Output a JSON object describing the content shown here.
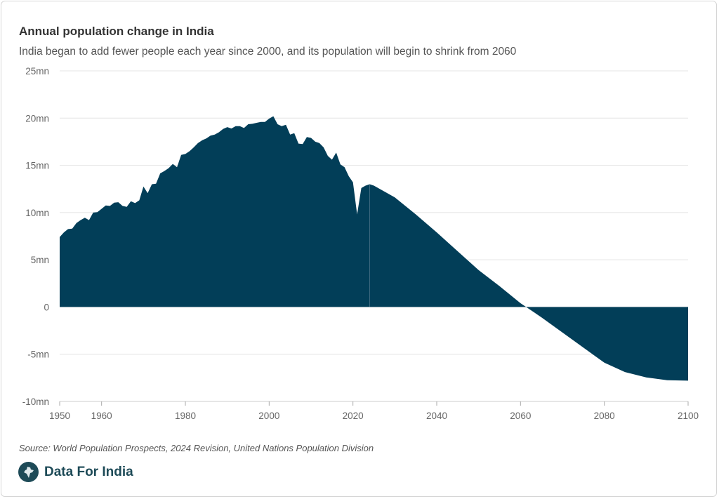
{
  "chart_data": {
    "type": "area",
    "title": "Annual population change in India",
    "subtitle": "India began to add fewer people each year since 2000, and its population will begin to shrink from 2060",
    "xlabel": "",
    "ylabel": "",
    "xlim": [
      1950,
      2100
    ],
    "ylim": [
      -10,
      25
    ],
    "x_ticks": [
      "1950",
      "1960",
      "1980",
      "2000",
      "2020",
      "2040",
      "2060",
      "2080",
      "2100"
    ],
    "y_ticks": [
      "25mn",
      "20mn",
      "15mn",
      "10mn",
      "5mn",
      "0",
      "-5mn",
      "-10mn"
    ],
    "y_tick_values": [
      25,
      20,
      15,
      10,
      5,
      0,
      -5,
      -10
    ],
    "x_tick_values": [
      1950,
      1960,
      1980,
      2000,
      2020,
      2040,
      2060,
      2080,
      2100
    ],
    "grid": true,
    "unit": "million people",
    "color": "#023e58",
    "series": [
      {
        "x": [
          1950,
          1951,
          1952,
          1953,
          1954,
          1955,
          1956,
          1957,
          1958,
          1959,
          1960,
          1961,
          1962,
          1963,
          1964,
          1965,
          1966,
          1967,
          1968,
          1969,
          1970,
          1971,
          1972,
          1973,
          1974,
          1975,
          1976,
          1977,
          1978,
          1979,
          1980,
          1981,
          1982,
          1983,
          1984,
          1985,
          1986,
          1987,
          1988,
          1989,
          1990,
          1991,
          1992,
          1993,
          1994,
          1995,
          1996,
          1997,
          1998,
          1999,
          2000,
          2001,
          2002,
          2003,
          2004,
          2005,
          2006,
          2007,
          2008,
          2009,
          2010,
          2011,
          2012,
          2013,
          2014,
          2015,
          2016,
          2017,
          2018,
          2019,
          2020,
          2021,
          2022,
          2023,
          2024,
          2025,
          2030,
          2035,
          2040,
          2045,
          2050,
          2055,
          2060,
          2065,
          2070,
          2075,
          2080,
          2085,
          2090,
          2095,
          2100
        ],
        "values": [
          7.4,
          7.9,
          8.25,
          8.3,
          8.9,
          9.2,
          9.45,
          9.2,
          10.0,
          10.05,
          10.4,
          10.75,
          10.7,
          11.05,
          11.1,
          10.7,
          10.6,
          11.2,
          11.0,
          11.3,
          12.75,
          12.05,
          13.0,
          13.05,
          14.15,
          14.4,
          14.7,
          15.15,
          14.8,
          16.1,
          16.2,
          16.5,
          16.9,
          17.35,
          17.65,
          17.85,
          18.15,
          18.25,
          18.5,
          18.85,
          19.05,
          18.9,
          19.15,
          19.15,
          18.95,
          19.35,
          19.4,
          19.5,
          19.6,
          19.6,
          19.95,
          20.2,
          19.35,
          19.15,
          19.3,
          18.25,
          18.4,
          17.3,
          17.25,
          18.0,
          17.9,
          17.5,
          17.35,
          16.9,
          16.0,
          15.6,
          16.35,
          15.1,
          14.8,
          13.85,
          13.2,
          9.8,
          12.6,
          12.85,
          13.0,
          12.85,
          11.6,
          9.8,
          7.9,
          5.9,
          3.9,
          2.2,
          0.4,
          -1.1,
          -2.7,
          -4.3,
          -5.9,
          -6.9,
          -7.45,
          -7.75,
          -7.8
        ]
      }
    ]
  },
  "source": "Source: World Population Prospects, 2024 Revision, United Nations Population Division",
  "brand": {
    "name": "Data For India",
    "icon": "india-map-logo-icon",
    "color": "#1d4a57"
  }
}
